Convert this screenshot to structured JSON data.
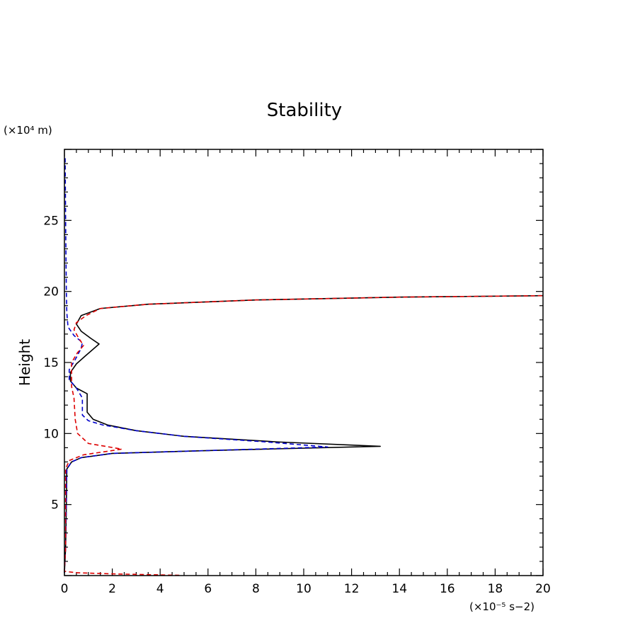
{
  "chart_data": {
    "type": "line",
    "title": "Stability",
    "ylabel": "Height",
    "yunit": "(×10⁴ m)",
    "xunit": "(×10⁻⁵ s−2)",
    "xlim": [
      0,
      20
    ],
    "ylim": [
      0,
      30
    ],
    "x_ticks": [
      "0",
      "2",
      "4",
      "6",
      "8",
      "10",
      "12",
      "14",
      "16",
      "18",
      "20"
    ],
    "y_ticks": [
      "5",
      "10",
      "15",
      "20",
      "25"
    ],
    "series": [
      {
        "color": "#000000",
        "dash": "solid",
        "points": [
          [
            0,
            0.2
          ],
          [
            0.05,
            2
          ],
          [
            0.08,
            5
          ],
          [
            0.1,
            7.5
          ],
          [
            0.3,
            8.0
          ],
          [
            0.7,
            8.3
          ],
          [
            2,
            8.6
          ],
          [
            6,
            8.8
          ],
          [
            13.2,
            9.1
          ],
          [
            9,
            9.4
          ],
          [
            5,
            9.8
          ],
          [
            3,
            10.2
          ],
          [
            1.8,
            10.6
          ],
          [
            1.2,
            11.0
          ],
          [
            0.95,
            11.5
          ],
          [
            0.95,
            12.8
          ],
          [
            0.5,
            13.2
          ],
          [
            0.25,
            13.7
          ],
          [
            0.25,
            14.3
          ],
          [
            0.5,
            14.9
          ],
          [
            0.9,
            15.5
          ],
          [
            1.45,
            16.3
          ],
          [
            1.1,
            16.7
          ],
          [
            0.7,
            17.2
          ],
          [
            0.5,
            17.7
          ],
          [
            0.7,
            18.3
          ],
          [
            1.5,
            18.8
          ],
          [
            3.5,
            19.1
          ],
          [
            8,
            19.4
          ],
          [
            14,
            19.6
          ],
          [
            20,
            19.7
          ]
        ]
      },
      {
        "color": "#0000cc",
        "dash": "dashed",
        "points": [
          [
            0,
            0.2
          ],
          [
            0.05,
            2
          ],
          [
            0.08,
            5
          ],
          [
            0.1,
            7.5
          ],
          [
            0.3,
            8.0
          ],
          [
            0.7,
            8.3
          ],
          [
            2,
            8.6
          ],
          [
            6,
            8.8
          ],
          [
            11,
            9.05
          ],
          [
            8.5,
            9.4
          ],
          [
            5,
            9.8
          ],
          [
            3,
            10.2
          ],
          [
            1.6,
            10.6
          ],
          [
            1.0,
            10.9
          ],
          [
            0.75,
            11.3
          ],
          [
            0.75,
            12.5
          ],
          [
            0.5,
            13.2
          ],
          [
            0.2,
            13.8
          ],
          [
            0.2,
            14.5
          ],
          [
            0.45,
            15.2
          ],
          [
            0.7,
            16.0
          ],
          [
            0.75,
            16.4
          ],
          [
            0.4,
            16.9
          ],
          [
            0.15,
            17.5
          ],
          [
            0.1,
            18.5
          ],
          [
            0.08,
            20
          ],
          [
            0.05,
            25
          ],
          [
            0.03,
            29.5
          ]
        ]
      },
      {
        "color": "#dd0000",
        "dash": "dashed",
        "points": [
          [
            4.8,
            0.02
          ],
          [
            2,
            0.12
          ],
          [
            0.5,
            0.2
          ],
          [
            0,
            0.3
          ],
          [
            0.05,
            2
          ],
          [
            0.05,
            5
          ],
          [
            0.05,
            7.5
          ],
          [
            0.2,
            8.1
          ],
          [
            0.8,
            8.5
          ],
          [
            2.4,
            8.9
          ],
          [
            1.0,
            9.3
          ],
          [
            0.55,
            10.0
          ],
          [
            0.45,
            11.0
          ],
          [
            0.4,
            12.5
          ],
          [
            0.3,
            13.3
          ],
          [
            0.3,
            14.2
          ],
          [
            0.3,
            15.0
          ],
          [
            0.55,
            15.7
          ],
          [
            0.8,
            16.2
          ],
          [
            0.6,
            16.7
          ],
          [
            0.4,
            17.3
          ],
          [
            0.5,
            17.8
          ],
          [
            0.9,
            18.3
          ],
          [
            1.5,
            18.8
          ],
          [
            3.5,
            19.1
          ],
          [
            8,
            19.4
          ],
          [
            14,
            19.6
          ],
          [
            20,
            19.7
          ]
        ]
      }
    ]
  }
}
